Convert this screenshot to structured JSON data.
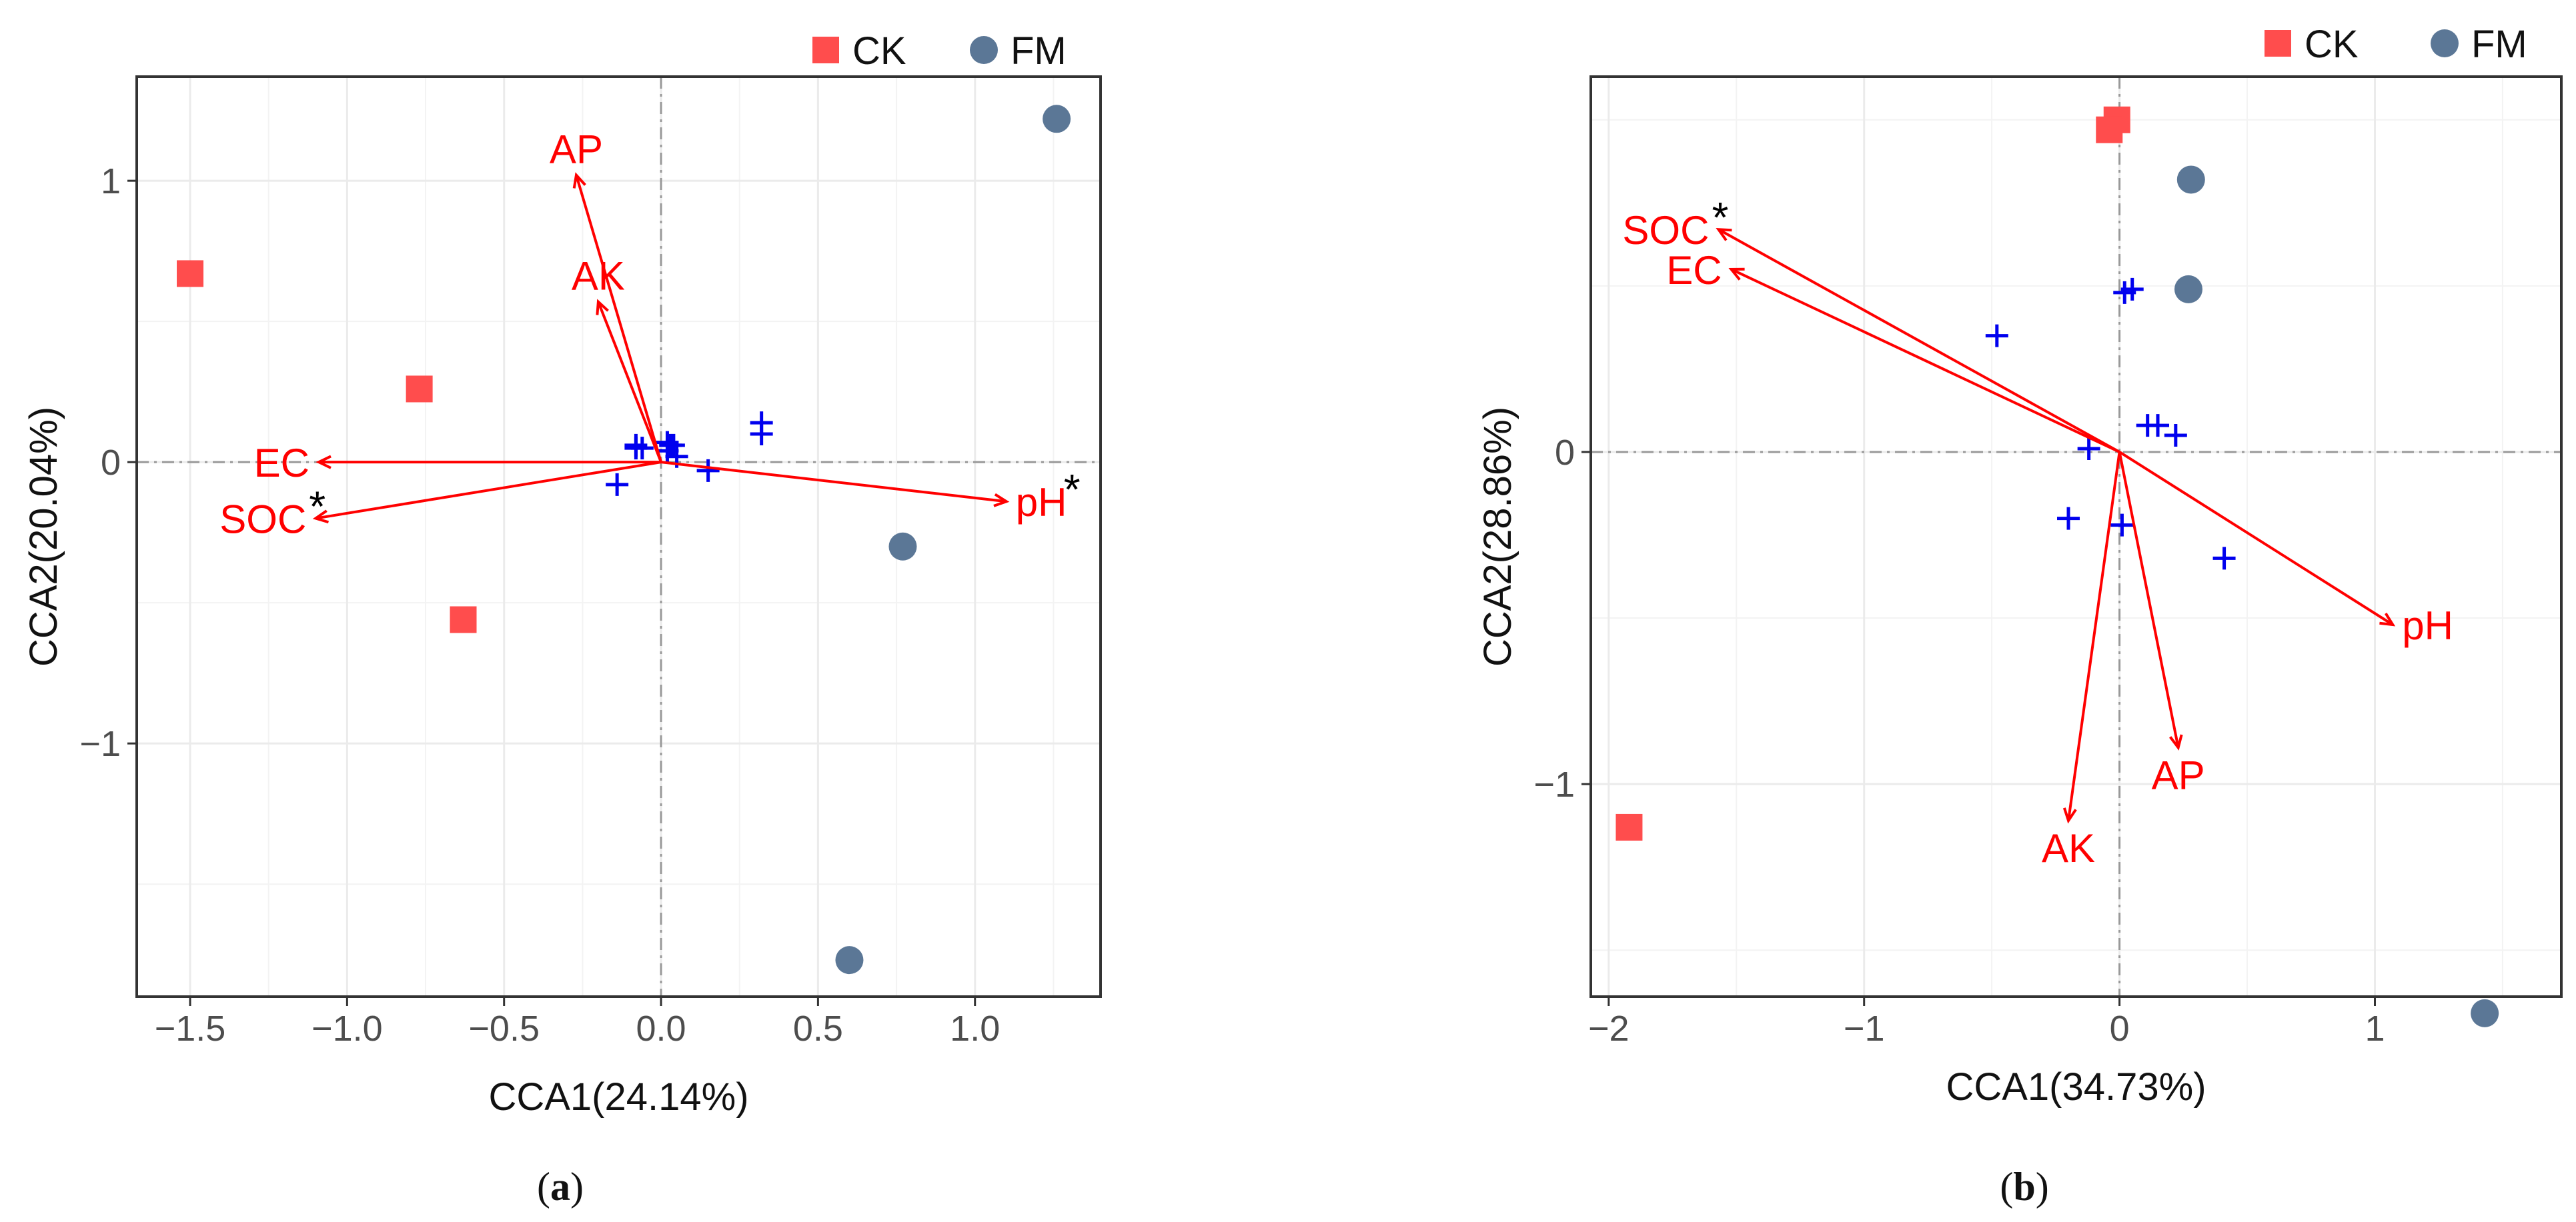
{
  "colors": {
    "ck": "#ff4d4d",
    "fm": "#5b7796",
    "arrow": "#ff0000",
    "species": "#0000ee",
    "star": "#000000",
    "grid": "#ebebeb",
    "zero": "#999999"
  },
  "legend": [
    {
      "label": "CK",
      "shape": "square",
      "color": "#ff4d4d"
    },
    {
      "label": "FM",
      "shape": "circle",
      "color": "#5b7796"
    }
  ],
  "chart_data": [
    {
      "type": "scatter",
      "panel_label": "a",
      "xlabel": "CCA1(24.14%)",
      "ylabel": "CCA2(20.04%)",
      "xlim": [
        -1.67,
        1.4
      ],
      "ylim": [
        -1.9,
        1.37
      ],
      "xticks": [
        -1.5,
        -1.0,
        -0.5,
        0.0,
        0.5,
        1.0
      ],
      "xtick_labels": [
        "−1.5",
        "−1.0",
        "−0.5",
        "0.0",
        "0.5",
        "1.0"
      ],
      "yticks": [
        -1,
        0,
        1
      ],
      "ytick_labels": [
        "−1",
        "0",
        "1"
      ],
      "grid": true,
      "legend_position": "top-right",
      "samples": [
        {
          "group": "CK",
          "points": [
            [
              -1.5,
              0.67
            ],
            [
              -0.77,
              0.26
            ],
            [
              -0.63,
              -0.56
            ]
          ]
        },
        {
          "group": "FM",
          "points": [
            [
              1.26,
              1.22
            ],
            [
              0.77,
              -0.3
            ],
            [
              0.6,
              -1.77
            ]
          ]
        }
      ],
      "species": [
        [
          -0.08,
          0.05
        ],
        [
          -0.06,
          0.05
        ],
        [
          -0.08,
          0.06
        ],
        [
          0.02,
          0.07
        ],
        [
          0.03,
          0.06
        ],
        [
          0.04,
          0.06
        ],
        [
          0.05,
          0.02
        ],
        [
          0.02,
          0.04
        ],
        [
          -0.14,
          -0.08
        ],
        [
          0.15,
          -0.03
        ],
        [
          0.32,
          0.1
        ],
        [
          0.32,
          0.14
        ]
      ],
      "arrows": [
        {
          "label": "AP",
          "x": -0.27,
          "y": 1.02,
          "significant": false
        },
        {
          "label": "AK",
          "x": -0.2,
          "y": 0.57,
          "significant": false
        },
        {
          "label": "EC",
          "x": -1.09,
          "y": 0.0,
          "significant": false
        },
        {
          "label": "SOC",
          "x": -1.1,
          "y": -0.2,
          "significant": true
        },
        {
          "label": "pH",
          "x": 1.1,
          "y": -0.14,
          "significant": true
        }
      ],
      "significance_marker": "*"
    },
    {
      "type": "scatter",
      "panel_label": "b",
      "xlabel": "CCA1(34.73%)",
      "ylabel": "CCA2(28.86%)",
      "xlim": [
        -2.07,
        1.73
      ],
      "ylim": [
        -1.64,
        1.13
      ],
      "xticks": [
        -2,
        -1,
        0,
        1
      ],
      "xtick_labels": [
        "−2",
        "−1",
        "0",
        "1"
      ],
      "yticks": [
        -1,
        0
      ],
      "ytick_labels": [
        "−1",
        "0"
      ],
      "grid": true,
      "legend_position": "top-right",
      "samples": [
        {
          "group": "CK",
          "points": [
            [
              -0.01,
              1.0
            ],
            [
              -0.04,
              0.97
            ],
            [
              -1.92,
              -1.13
            ]
          ]
        },
        {
          "group": "FM",
          "points": [
            [
              0.28,
              0.82
            ],
            [
              0.27,
              0.49
            ],
            [
              1.43,
              -1.69
            ]
          ]
        }
      ],
      "species": [
        [
          -0.48,
          0.35
        ],
        [
          0.02,
          0.48
        ],
        [
          0.05,
          0.49
        ],
        [
          -0.12,
          0.01
        ],
        [
          0.11,
          0.08
        ],
        [
          0.15,
          0.08
        ],
        [
          0.22,
          0.05
        ],
        [
          -0.2,
          -0.2
        ],
        [
          0.01,
          -0.22
        ],
        [
          0.41,
          -0.32
        ]
      ],
      "arrows": [
        {
          "label": "SOC",
          "x": -1.57,
          "y": 0.67,
          "significant": true
        },
        {
          "label": "EC",
          "x": -1.52,
          "y": 0.55,
          "significant": false
        },
        {
          "label": "pH",
          "x": 1.07,
          "y": -0.52,
          "significant": false
        },
        {
          "label": "AP",
          "x": 0.23,
          "y": -0.89,
          "significant": false
        },
        {
          "label": "AK",
          "x": -0.2,
          "y": -1.11,
          "significant": false
        }
      ],
      "significance_marker": "*"
    }
  ]
}
